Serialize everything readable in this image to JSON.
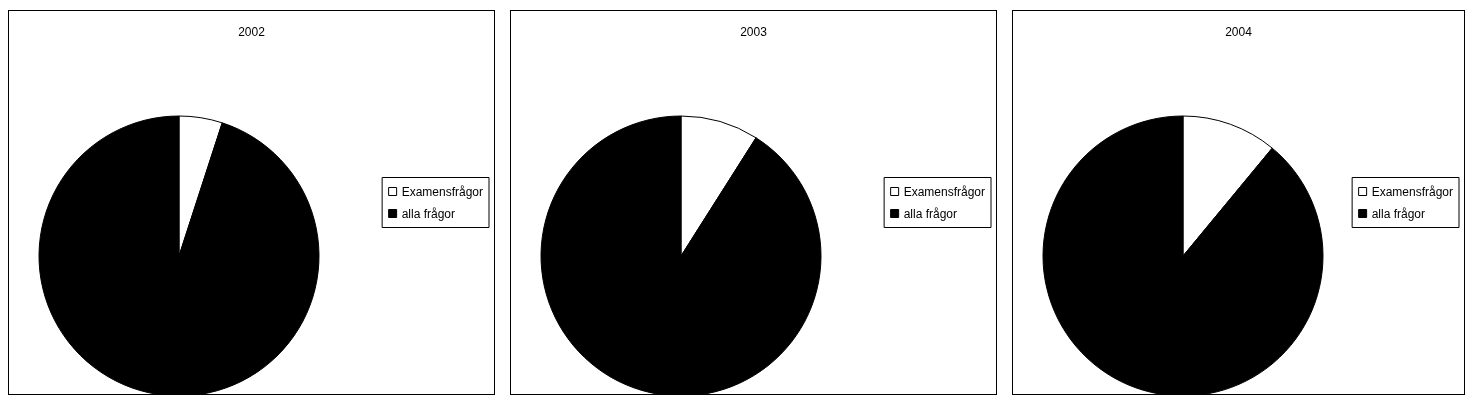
{
  "chart_data": [
    {
      "type": "pie",
      "title": "2002",
      "categories": [
        "Examensfrågor",
        "alla frågor"
      ],
      "values": [
        5,
        95
      ],
      "colors": [
        "#ffffff",
        "#000000"
      ],
      "legend": "right"
    },
    {
      "type": "pie",
      "title": "2003",
      "categories": [
        "Examensfrågor",
        "alla frågor"
      ],
      "values": [
        9,
        91
      ],
      "colors": [
        "#ffffff",
        "#000000"
      ],
      "legend": "right"
    },
    {
      "type": "pie",
      "title": "2004",
      "categories": [
        "Examensfrågor",
        "alla frågor"
      ],
      "values": [
        11,
        89
      ],
      "colors": [
        "#ffffff",
        "#000000"
      ],
      "legend": "right"
    }
  ]
}
